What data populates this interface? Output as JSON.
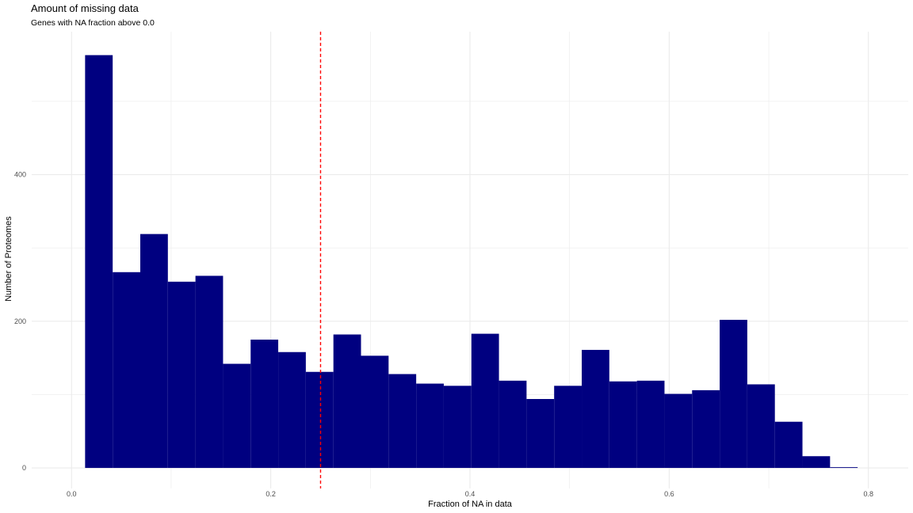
{
  "chart_data": {
    "type": "bar",
    "title": "Amount of missing data",
    "subtitle": "Genes with NA fraction above 0.0",
    "xlabel": "Fraction of NA in data",
    "ylabel": "Number of Proteomes",
    "x_ticks": [
      "0.0",
      "0.2",
      "0.4",
      "0.6",
      "0.8"
    ],
    "x_tick_values": [
      0.0,
      0.2,
      0.4,
      0.6,
      0.8
    ],
    "y_ticks": [
      "0",
      "200",
      "400"
    ],
    "y_tick_values": [
      0,
      200,
      400
    ],
    "xlim": [
      -0.04,
      0.84
    ],
    "ylim": [
      -28,
      595
    ],
    "bins": [
      {
        "x0": 0.0136,
        "x1": 0.0413,
        "value": 563
      },
      {
        "x0": 0.0413,
        "x1": 0.069,
        "value": 267
      },
      {
        "x0": 0.069,
        "x1": 0.0967,
        "value": 319
      },
      {
        "x0": 0.0967,
        "x1": 0.1244,
        "value": 254
      },
      {
        "x0": 0.1244,
        "x1": 0.1521,
        "value": 262
      },
      {
        "x0": 0.1521,
        "x1": 0.1798,
        "value": 142
      },
      {
        "x0": 0.1798,
        "x1": 0.2075,
        "value": 175
      },
      {
        "x0": 0.2075,
        "x1": 0.2352,
        "value": 158
      },
      {
        "x0": 0.2352,
        "x1": 0.2629,
        "value": 131
      },
      {
        "x0": 0.2629,
        "x1": 0.2906,
        "value": 182
      },
      {
        "x0": 0.2906,
        "x1": 0.3183,
        "value": 153
      },
      {
        "x0": 0.3183,
        "x1": 0.346,
        "value": 128
      },
      {
        "x0": 0.346,
        "x1": 0.3737,
        "value": 115
      },
      {
        "x0": 0.3737,
        "x1": 0.4014,
        "value": 112
      },
      {
        "x0": 0.4014,
        "x1": 0.4291,
        "value": 183
      },
      {
        "x0": 0.4291,
        "x1": 0.4568,
        "value": 119
      },
      {
        "x0": 0.4568,
        "x1": 0.4845,
        "value": 94
      },
      {
        "x0": 0.4845,
        "x1": 0.5122,
        "value": 112
      },
      {
        "x0": 0.5122,
        "x1": 0.5399,
        "value": 161
      },
      {
        "x0": 0.5399,
        "x1": 0.5676,
        "value": 118
      },
      {
        "x0": 0.5676,
        "x1": 0.5953,
        "value": 119
      },
      {
        "x0": 0.5953,
        "x1": 0.623,
        "value": 101
      },
      {
        "x0": 0.623,
        "x1": 0.6507,
        "value": 106
      },
      {
        "x0": 0.6507,
        "x1": 0.6784,
        "value": 202
      },
      {
        "x0": 0.6784,
        "x1": 0.7061,
        "value": 114
      },
      {
        "x0": 0.7061,
        "x1": 0.7338,
        "value": 63
      },
      {
        "x0": 0.7338,
        "x1": 0.7615,
        "value": 16
      },
      {
        "x0": 0.7615,
        "x1": 0.7892,
        "value": 1
      }
    ],
    "bar_color": "#000080",
    "vline": {
      "x": 0.25,
      "color": "#ff0000",
      "style": "dashed"
    },
    "grid": true,
    "gridline_color": "#ebebeb",
    "legend": "none"
  }
}
